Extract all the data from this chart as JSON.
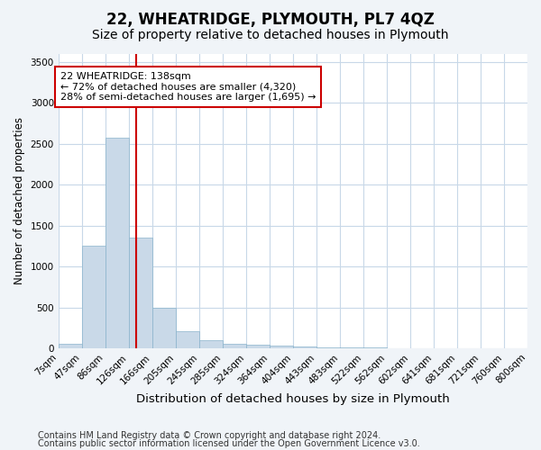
{
  "title": "22, WHEATRIDGE, PLYMOUTH, PL7 4QZ",
  "subtitle": "Size of property relative to detached houses in Plymouth",
  "xlabel": "Distribution of detached houses by size in Plymouth",
  "ylabel": "Number of detached properties",
  "bin_labels": [
    "7sqm",
    "47sqm",
    "86sqm",
    "126sqm",
    "166sqm",
    "205sqm",
    "245sqm",
    "285sqm",
    "324sqm",
    "364sqm",
    "404sqm",
    "443sqm",
    "483sqm",
    "522sqm",
    "562sqm",
    "602sqm",
    "641sqm",
    "681sqm",
    "721sqm",
    "760sqm",
    "800sqm"
  ],
  "bin_edges": [
    7,
    47,
    86,
    126,
    166,
    205,
    245,
    285,
    324,
    364,
    404,
    443,
    483,
    522,
    562,
    602,
    641,
    681,
    721,
    760,
    800
  ],
  "bar_heights": [
    50,
    1250,
    2580,
    1350,
    500,
    210,
    100,
    50,
    40,
    30,
    20,
    10,
    8,
    5,
    3,
    2,
    1,
    1,
    0,
    0
  ],
  "bar_color": "#c9d9e8",
  "bar_edgecolor": "#8ab4cc",
  "property_size": 138,
  "red_line_color": "#cc0000",
  "annotation_line1": "22 WHEATRIDGE: 138sqm",
  "annotation_line2": "← 72% of detached houses are smaller (4,320)",
  "annotation_line3": "28% of semi-detached houses are larger (1,695) →",
  "annotation_box_edgecolor": "#cc0000",
  "ylim": [
    0,
    3600
  ],
  "yticks": [
    0,
    500,
    1000,
    1500,
    2000,
    2500,
    3000,
    3500
  ],
  "footer_line1": "Contains HM Land Registry data © Crown copyright and database right 2024.",
  "footer_line2": "Contains public sector information licensed under the Open Government Licence v3.0.",
  "background_color": "#f0f4f8",
  "plot_background_color": "#ffffff",
  "grid_color": "#c8d8e8",
  "title_fontsize": 12,
  "subtitle_fontsize": 10,
  "xlabel_fontsize": 9.5,
  "ylabel_fontsize": 8.5,
  "tick_fontsize": 7.5,
  "annot_fontsize": 8,
  "footer_fontsize": 7
}
